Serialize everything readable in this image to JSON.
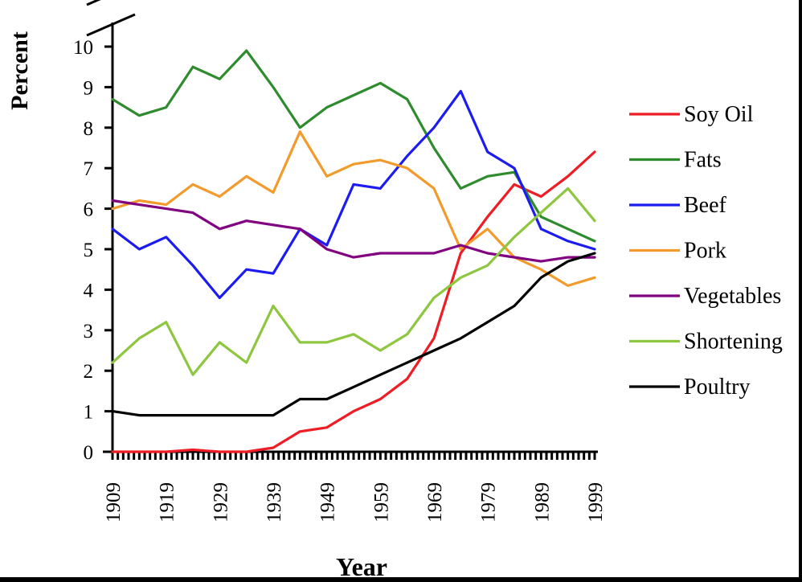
{
  "chart_data": {
    "type": "line",
    "title": "",
    "xlabel": "Year",
    "ylabel": "Percent",
    "xlim": [
      1909,
      1999
    ],
    "ylim": [
      0,
      10
    ],
    "x_ticks": [
      "1909",
      "1919",
      "1929",
      "1939",
      "1949",
      "1959",
      "1969",
      "1979",
      "1989",
      "1999"
    ],
    "y_ticks": [
      "0",
      "1",
      "2",
      "3",
      "4",
      "5",
      "6",
      "7",
      "8",
      "9",
      "10"
    ],
    "axis_break": true,
    "grid": false,
    "legend_position": "right",
    "x": [
      1909,
      1914,
      1919,
      1924,
      1929,
      1934,
      1939,
      1944,
      1949,
      1954,
      1959,
      1964,
      1969,
      1974,
      1979,
      1984,
      1989,
      1994,
      1999
    ],
    "series": [
      {
        "name": "Soy Oil",
        "color": "#ee1c25",
        "values": [
          0,
          0,
          0,
          0.05,
          0,
          0,
          0.1,
          0.5,
          0.6,
          1.0,
          1.3,
          1.8,
          2.8,
          4.9,
          5.8,
          6.6,
          6.3,
          6.8,
          7.4
        ]
      },
      {
        "name": "Fats",
        "color": "#2e8b2e",
        "values": [
          8.7,
          8.3,
          8.5,
          9.5,
          9.2,
          9.9,
          9.0,
          8.0,
          8.5,
          8.8,
          9.1,
          8.7,
          7.5,
          6.5,
          6.8,
          6.9,
          5.8,
          5.5,
          5.2
        ]
      },
      {
        "name": "Beef",
        "color": "#1c1cf0",
        "values": [
          5.5,
          5.0,
          5.3,
          4.6,
          3.8,
          4.5,
          4.4,
          5.5,
          5.1,
          6.6,
          6.5,
          7.3,
          8.0,
          8.9,
          7.4,
          7.0,
          5.5,
          5.2,
          5.0
        ]
      },
      {
        "name": "Pork",
        "color": "#f39a2c",
        "values": [
          6.0,
          6.2,
          6.1,
          6.6,
          6.3,
          6.8,
          6.4,
          7.9,
          6.8,
          7.1,
          7.2,
          7.0,
          6.5,
          5.0,
          5.5,
          4.8,
          4.5,
          4.1,
          4.3
        ]
      },
      {
        "name": "Vegetables",
        "color": "#800080",
        "values": [
          6.2,
          6.1,
          6.0,
          5.9,
          5.5,
          5.7,
          5.6,
          5.5,
          5.0,
          4.8,
          4.9,
          4.9,
          4.9,
          5.1,
          4.9,
          4.8,
          4.7,
          4.8,
          4.8
        ]
      },
      {
        "name": "Shortening",
        "color": "#8dc63f",
        "values": [
          2.2,
          2.8,
          3.2,
          1.9,
          2.7,
          2.2,
          3.6,
          2.7,
          2.7,
          2.9,
          2.5,
          2.9,
          3.8,
          4.3,
          4.6,
          5.3,
          5.9,
          6.5,
          5.7
        ]
      },
      {
        "name": "Poultry",
        "color": "#000000",
        "values": [
          1.0,
          0.9,
          0.9,
          0.9,
          0.9,
          0.9,
          0.9,
          1.3,
          1.3,
          1.6,
          1.9,
          2.2,
          2.5,
          2.8,
          3.2,
          3.6,
          4.3,
          4.7,
          4.9
        ]
      }
    ]
  }
}
